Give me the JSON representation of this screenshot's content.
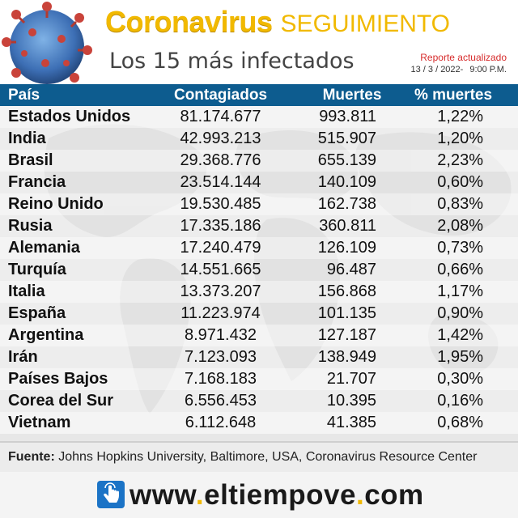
{
  "header": {
    "title_main": "Coronavirus",
    "title_sub": "SEGUIMIENTO",
    "subtitle": "Los 15 más infectados",
    "report_label": "Reporte actualizado",
    "report_date": "13 / 3 / 2022-",
    "report_time": "9:00 P.M."
  },
  "table": {
    "headers": [
      "País",
      "Contagiados",
      "Muertes",
      "% muertes"
    ],
    "rows": [
      {
        "country": "Estados Unidos",
        "cases": "81.174.677",
        "deaths": "993.811",
        "pct": "1,22%"
      },
      {
        "country": "India",
        "cases": "42.993.213",
        "deaths": "515.907",
        "pct": "1,20%"
      },
      {
        "country": "Brasil",
        "cases": "29.368.776",
        "deaths": "655.139",
        "pct": "2,23%"
      },
      {
        "country": "Francia",
        "cases": "23.514.144",
        "deaths": "140.109",
        "pct": "0,60%"
      },
      {
        "country": "Reino Unido",
        "cases": "19.530.485",
        "deaths": "162.738",
        "pct": "0,83%"
      },
      {
        "country": "Rusia",
        "cases": "17.335.186",
        "deaths": "360.811",
        "pct": "2,08%"
      },
      {
        "country": "Alemania",
        "cases": "17.240.479",
        "deaths": "126.109",
        "pct": "0,73%"
      },
      {
        "country": "Turquía",
        "cases": "14.551.665",
        "deaths": "96.487",
        "pct": "0,66%"
      },
      {
        "country": "Italia",
        "cases": "13.373.207",
        "deaths": "156.868",
        "pct": "1,17%"
      },
      {
        "country": "España",
        "cases": "11.223.974",
        "deaths": "101.135",
        "pct": "0,90%"
      },
      {
        "country": "Argentina",
        "cases": "8.971.432",
        "deaths": "127.187",
        "pct": "1,42%"
      },
      {
        "country": "Irán",
        "cases": "7.123.093",
        "deaths": "138.949",
        "pct": "1,95%"
      },
      {
        "country": "Países Bajos",
        "cases": "7.168.183",
        "deaths": "21.707",
        "pct": "0,30%"
      },
      {
        "country": "Corea del Sur",
        "cases": "6.556.453",
        "deaths": "10.395",
        "pct": "0,16%"
      },
      {
        "country": "Vietnam",
        "cases": "6.112.648",
        "deaths": "41.385",
        "pct": "0,68%"
      }
    ]
  },
  "footer": {
    "source_label": "Fuente:",
    "source_text": "Johns Hopkins University, Baltimore, USA, Coronavirus Resource Center",
    "url_www": "www",
    "url_name": "eltiempove",
    "url_tld": "com",
    "icon": "hand-pointer-icon"
  },
  "colors": {
    "accent": "#f1b900",
    "header_bg": "#0d5c8f",
    "report_red": "#d62b2b",
    "row_alt": "#f4f4f4"
  }
}
